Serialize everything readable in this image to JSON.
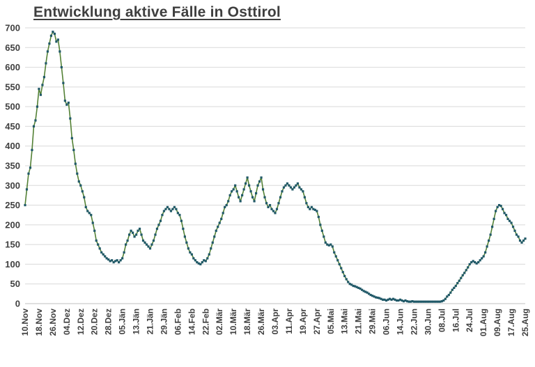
{
  "page_title": "Entwicklung aktive Fälle in Osttirol",
  "colors": {
    "line": "#538135",
    "marker": "#215968",
    "grid": "#d9d9d9",
    "axis": "#bfbfbf",
    "text": "#404040",
    "background": "#ffffff"
  },
  "chart_data": {
    "type": "line",
    "title": "Entwicklung aktive Fälle in Osttirol",
    "xlabel": "",
    "ylabel": "",
    "ylim": [
      0,
      700
    ],
    "ytick_step": 50,
    "grid": true,
    "legend": false,
    "marker": "square",
    "x_tick_interval": 8,
    "x_tick_labels": [
      "10.Nov",
      "18.Nov",
      "26.Nov",
      "04.Dez",
      "12.Dez",
      "20.Dez",
      "28.Dez",
      "05.Jän",
      "13.Jän",
      "21.Jän",
      "29.Jän",
      "06.Feb",
      "14.Feb",
      "22.Feb",
      "02.Mär",
      "10.Mär",
      "18.Mär",
      "26.Mär",
      "03.Apr",
      "11.Apr",
      "19.Apr",
      "27.Apr",
      "05.Mai",
      "13.Mai",
      "21.Mai",
      "29.Mai",
      "06.Jun",
      "14.Jun",
      "22.Jun",
      "30.Jun",
      "08.Jul",
      "16.Jul",
      "24.Jul",
      "01.Aug",
      "09.Aug",
      "17.Aug",
      "25.Aug"
    ],
    "series": [
      {
        "name": "aktive Fälle",
        "values": [
          250,
          290,
          330,
          345,
          390,
          450,
          465,
          500,
          545,
          530,
          555,
          575,
          610,
          640,
          660,
          680,
          690,
          685,
          665,
          670,
          640,
          600,
          560,
          515,
          505,
          510,
          470,
          420,
          390,
          355,
          330,
          310,
          300,
          285,
          270,
          245,
          235,
          230,
          225,
          205,
          185,
          160,
          150,
          140,
          130,
          125,
          120,
          115,
          112,
          108,
          110,
          105,
          108,
          110,
          105,
          110,
          115,
          130,
          150,
          160,
          175,
          185,
          180,
          170,
          175,
          185,
          190,
          175,
          160,
          155,
          150,
          145,
          140,
          150,
          160,
          175,
          190,
          200,
          210,
          225,
          235,
          240,
          245,
          240,
          235,
          240,
          245,
          240,
          230,
          225,
          210,
          190,
          170,
          155,
          140,
          130,
          125,
          115,
          110,
          105,
          102,
          100,
          105,
          110,
          108,
          115,
          125,
          140,
          155,
          170,
          185,
          195,
          205,
          215,
          230,
          245,
          250,
          260,
          275,
          285,
          290,
          300,
          285,
          270,
          260,
          275,
          290,
          305,
          320,
          300,
          285,
          270,
          260,
          280,
          300,
          310,
          320,
          290,
          270,
          255,
          245,
          250,
          240,
          235,
          230,
          240,
          255,
          270,
          285,
          295,
          300,
          305,
          300,
          295,
          290,
          295,
          300,
          305,
          295,
          290,
          285,
          270,
          255,
          245,
          240,
          245,
          240,
          238,
          235,
          220,
          200,
          185,
          170,
          155,
          150,
          148,
          150,
          145,
          130,
          120,
          110,
          100,
          90,
          80,
          70,
          62,
          55,
          50,
          48,
          45,
          44,
          42,
          40,
          38,
          35,
          32,
          30,
          28,
          25,
          22,
          20,
          18,
          16,
          15,
          14,
          12,
          10,
          10,
          8,
          10,
          12,
          10,
          12,
          10,
          8,
          8,
          10,
          8,
          6,
          8,
          6,
          5,
          5,
          6,
          5,
          5,
          5,
          5,
          5,
          5,
          5,
          5,
          5,
          5,
          5,
          5,
          5,
          5,
          5,
          5,
          6,
          8,
          12,
          18,
          22,
          28,
          35,
          40,
          45,
          52,
          58,
          65,
          72,
          78,
          85,
          92,
          100,
          105,
          108,
          105,
          102,
          105,
          110,
          115,
          120,
          130,
          145,
          160,
          175,
          195,
          215,
          235,
          245,
          250,
          248,
          240,
          230,
          225,
          215,
          210,
          205,
          195,
          185,
          175,
          170,
          160,
          155,
          160,
          165
        ]
      }
    ]
  }
}
